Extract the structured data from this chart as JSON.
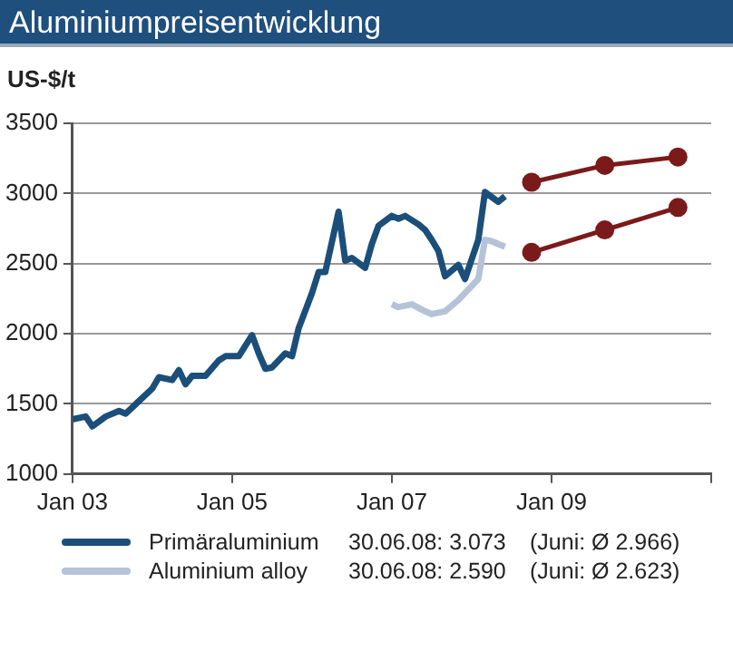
{
  "chart_data": {
    "type": "line",
    "title": "Aluminiumpreisentwicklung",
    "ylabel": "US-$/t",
    "xlim": [
      "2003-01",
      "2011-01"
    ],
    "xticks": [
      {
        "value": "2003-01",
        "label": "Jan 03"
      },
      {
        "value": "2005-01",
        "label": "Jan 05"
      },
      {
        "value": "2007-01",
        "label": "Jan 07"
      },
      {
        "value": "2009-01",
        "label": "Jan 09"
      },
      {
        "value": "2011-01",
        "label": null
      }
    ],
    "ylim": [
      1000,
      3500
    ],
    "yticks": [
      1000,
      1500,
      2000,
      2500,
      3000,
      3500
    ],
    "grid": "y",
    "legend": "bottom",
    "marker": "none",
    "line_style": "solid",
    "series": [
      {
        "name": "Primäraluminium",
        "color": "#1b4f7a",
        "x": [
          "2003-01",
          "2003-03",
          "2003-04",
          "2003-06",
          "2003-08",
          "2003-09",
          "2003-11",
          "2004-01",
          "2004-02",
          "2004-04",
          "2004-05",
          "2004-06",
          "2004-07",
          "2004-09",
          "2004-11",
          "2004-12",
          "2005-02",
          "2005-04",
          "2005-05",
          "2005-06",
          "2005-07",
          "2005-09",
          "2005-10",
          "2005-11",
          "2006-01",
          "2006-02",
          "2006-03",
          "2006-05",
          "2006-06",
          "2006-07",
          "2006-09",
          "2006-10",
          "2006-11",
          "2007-01",
          "2007-02",
          "2007-03",
          "2007-05",
          "2007-06",
          "2007-07",
          "2007-08",
          "2007-09",
          "2007-11",
          "2007-12",
          "2008-02",
          "2008-03",
          "2008-05",
          "2008-06"
        ],
        "values": [
          1390,
          1410,
          1340,
          1410,
          1450,
          1430,
          1520,
          1610,
          1690,
          1670,
          1740,
          1640,
          1700,
          1700,
          1810,
          1840,
          1840,
          1990,
          1860,
          1750,
          1760,
          1860,
          1840,
          2040,
          2290,
          2440,
          2440,
          2870,
          2520,
          2540,
          2470,
          2640,
          2770,
          2840,
          2820,
          2840,
          2780,
          2740,
          2670,
          2590,
          2410,
          2490,
          2390,
          2670,
          3010,
          2940,
          2980
        ]
      },
      {
        "name": "Aluminium alloy",
        "color": "#b4c3d8",
        "x": [
          "2007-01",
          "2007-02",
          "2007-04",
          "2007-06",
          "2007-07",
          "2007-09",
          "2007-11",
          "2007-12",
          "2008-02",
          "2008-03",
          "2008-04",
          "2008-06"
        ],
        "values": [
          2210,
          2190,
          2210,
          2160,
          2140,
          2160,
          2240,
          2290,
          2390,
          2670,
          2660,
          2620
        ]
      },
      {
        "color": "#7b1a1a",
        "marker": "circle",
        "x": [
          "2008-10",
          "2009-09",
          "2010-08"
        ],
        "values": [
          3080,
          3200,
          3260
        ]
      },
      {
        "color": "#7b1a1a",
        "marker": "circle",
        "x": [
          "2008-10",
          "2009-09",
          "2010-08"
        ],
        "values": [
          2580,
          2740,
          2900
        ]
      }
    ],
    "annotations": [
      "30.06.08: 3.073",
      "(Juni: Ø 2.966)",
      "30.06.08: 2.590",
      "(Juni: Ø 2.623)"
    ]
  }
}
